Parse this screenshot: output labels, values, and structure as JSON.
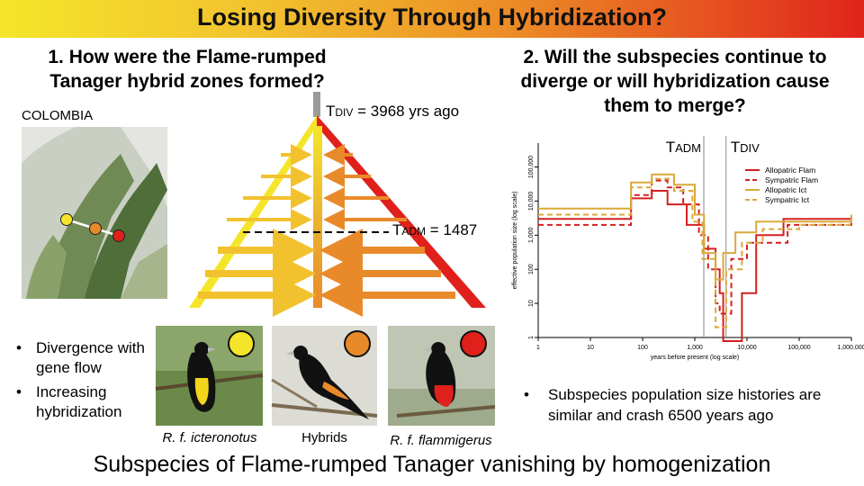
{
  "banner": {
    "title": "Losing Diversity Through Hybridization?"
  },
  "question1": "1. How were the Flame-rumped Tanager hybrid zones formed?",
  "question2": "2. Will the subspecies continue to diverge or will hybridization cause them to merge?",
  "map": {
    "label": "COLOMBIA"
  },
  "tree": {
    "tdiv_t": "T",
    "tdiv_sc": "DIV",
    "tdiv_rest": " = 3968 yrs ago",
    "tadm_t": "T",
    "tadm_sc": "ADM",
    "tadm_rest": " = 1487"
  },
  "bullets_left": [
    "Divergence with gene flow",
    "Increasing hybridization"
  ],
  "bullet_symbol": "•",
  "captions": {
    "icteronotus": "R. f. icteronotus",
    "hybrids": "Hybrids",
    "flammigerus": "R. f. flammigerus"
  },
  "colors": {
    "yellow": "#f5e52a",
    "orange": "#e98a2a",
    "red": "#e0201b",
    "gold": "#d9a93a"
  },
  "chart_data": {
    "type": "line",
    "xlabel": "years before present (log scale)",
    "ylabel": "effective population size (log scale)",
    "x_scale": "log",
    "y_scale": "log",
    "xlim": [
      1,
      1000000
    ],
    "ylim": [
      1,
      500000
    ],
    "x_ticks": [
      "1",
      "10",
      "100",
      "1,000",
      "10,000",
      "100,000",
      "1,000,000"
    ],
    "y_ticks": [
      "1",
      "10",
      "100",
      "1,000",
      "10,000",
      "100,000"
    ],
    "vlines": [
      {
        "label_t": "T",
        "label_sc": "ADM",
        "x": 1487
      },
      {
        "label_t": "T",
        "label_sc": "DIV",
        "x": 3968
      }
    ],
    "legend_position": "right",
    "series": [
      {
        "name": "Allopatric Flam",
        "color": "#d42020",
        "dash": false,
        "points": [
          [
            1,
            3000
          ],
          [
            30,
            3000
          ],
          [
            60,
            12000
          ],
          [
            150,
            20000
          ],
          [
            300,
            8000
          ],
          [
            700,
            2000
          ],
          [
            1500,
            400
          ],
          [
            2500,
            100
          ],
          [
            3000,
            20
          ],
          [
            3500,
            0.5
          ],
          [
            5000,
            0.5
          ],
          [
            8000,
            20
          ],
          [
            15000,
            1000
          ],
          [
            50000,
            3000
          ],
          [
            1000000,
            3000
          ]
        ]
      },
      {
        "name": "Sympatric Flam",
        "color": "#d42020",
        "dash": true,
        "points": [
          [
            1,
            2000
          ],
          [
            30,
            2000
          ],
          [
            60,
            15000
          ],
          [
            150,
            40000
          ],
          [
            300,
            25000
          ],
          [
            600,
            8000
          ],
          [
            1200,
            1000
          ],
          [
            1800,
            100
          ],
          [
            2500,
            10
          ],
          [
            3000,
            5
          ],
          [
            5000,
            200
          ],
          [
            10000,
            600
          ],
          [
            60000,
            2000
          ],
          [
            1000000,
            2500
          ]
        ]
      },
      {
        "name": "Allopatric Ict",
        "color": "#d9a93a",
        "dash": false,
        "points": [
          [
            1,
            6000
          ],
          [
            30,
            6000
          ],
          [
            60,
            35000
          ],
          [
            150,
            60000
          ],
          [
            400,
            30000
          ],
          [
            1000,
            4000
          ],
          [
            1500,
            300
          ],
          [
            2500,
            50
          ],
          [
            3500,
            300
          ],
          [
            6000,
            1200
          ],
          [
            15000,
            2500
          ],
          [
            80000,
            2500
          ],
          [
            1000000,
            4000
          ]
        ]
      },
      {
        "name": "Sympatric Ict",
        "color": "#d9a93a",
        "dash": true,
        "points": [
          [
            1,
            4000
          ],
          [
            30,
            4000
          ],
          [
            60,
            25000
          ],
          [
            150,
            45000
          ],
          [
            400,
            20000
          ],
          [
            900,
            2500
          ],
          [
            1400,
            200
          ],
          [
            2500,
            2
          ],
          [
            4000,
            100
          ],
          [
            8000,
            600
          ],
          [
            20000,
            1500
          ],
          [
            100000,
            2000
          ],
          [
            1000000,
            3500
          ]
        ]
      }
    ]
  },
  "bullet_right": "Subspecies population size histories are similar and crash 6500 years ago",
  "footer": "Subspecies of Flame-rumped Tanager vanishing by homogenization"
}
